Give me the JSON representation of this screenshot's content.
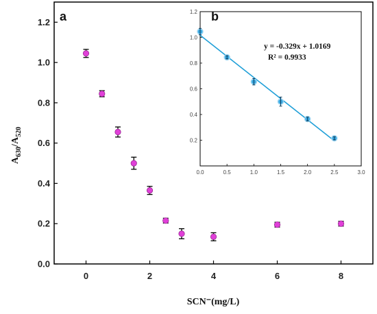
{
  "chart_data": [
    {
      "panel_label": "a",
      "type": "scatter",
      "xlabel": "SCN⁻(mg/L)",
      "ylabel": {
        "base": "A",
        "num_sub": "630",
        "sep": "/A",
        "den_sub": "520"
      },
      "xlim": [
        -1,
        9
      ],
      "ylim": [
        0,
        1.3
      ],
      "xticks": [
        0,
        2,
        4,
        6,
        8
      ],
      "yticks": [
        0.0,
        0.2,
        0.4,
        0.6,
        0.8,
        1.0,
        1.2
      ],
      "ytick_labels": [
        "0.0",
        "0.2",
        "0.4",
        "0.6",
        "0.8",
        "1.0",
        "1.2"
      ],
      "marker_color": "#e040d8",
      "points": [
        {
          "x": 0,
          "y": 1.045,
          "err": 0.02
        },
        {
          "x": 0.5,
          "y": 0.845,
          "err": 0.015
        },
        {
          "x": 1,
          "y": 0.655,
          "err": 0.025
        },
        {
          "x": 1.5,
          "y": 0.5,
          "err": 0.03
        },
        {
          "x": 2,
          "y": 0.365,
          "err": 0.02
        },
        {
          "x": 2.5,
          "y": 0.215,
          "err": 0.012
        },
        {
          "x": 3,
          "y": 0.15,
          "err": 0.025
        },
        {
          "x": 4,
          "y": 0.135,
          "err": 0.02
        },
        {
          "x": 6,
          "y": 0.195,
          "err": 0.012
        },
        {
          "x": 8,
          "y": 0.2,
          "err": 0.012
        }
      ]
    },
    {
      "panel_label": "b",
      "type": "scatter",
      "inset": true,
      "xlim": [
        0,
        3
      ],
      "ylim": [
        0,
        1.2
      ],
      "xticks": [
        0.0,
        0.5,
        1.0,
        1.5,
        2.0,
        2.5,
        3.0
      ],
      "xtick_labels": [
        "0.0",
        "0.5",
        "1.0",
        "1.5",
        "2.0",
        "2.5",
        "3.0"
      ],
      "yticks": [
        0.2,
        0.4,
        0.6,
        0.8,
        1.0,
        1.2
      ],
      "ytick_labels": [
        "0.2",
        "0.4",
        "0.6",
        "0.8",
        "1.0",
        "1.2"
      ],
      "marker_color": "#3aa8e0",
      "line_color": "#1f9fd8",
      "fit": {
        "slope": -0.329,
        "intercept": 1.0169,
        "x_range": [
          0,
          2.5
        ]
      },
      "equation": "y = -0.329x + 1.0169",
      "r_squared": "R² = 0.9933",
      "points": [
        {
          "x": 0,
          "y": 1.045,
          "err": 0.025
        },
        {
          "x": 0.5,
          "y": 0.845,
          "err": 0.012
        },
        {
          "x": 1,
          "y": 0.655,
          "err": 0.025
        },
        {
          "x": 1.5,
          "y": 0.5,
          "err": 0.035
        },
        {
          "x": 2,
          "y": 0.365,
          "err": 0.015
        },
        {
          "x": 2.5,
          "y": 0.215,
          "err": 0.012
        }
      ]
    }
  ]
}
